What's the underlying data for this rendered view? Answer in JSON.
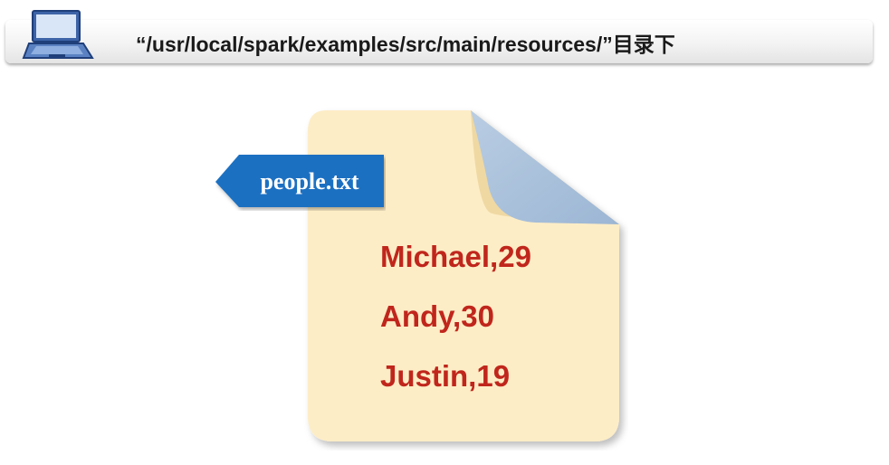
{
  "header": {
    "title": "“/usr/local/spark/examples/src/main/resources/”目录下",
    "icon": "laptop-icon"
  },
  "file": {
    "name": "people.txt",
    "lines": [
      "Michael,29",
      "Andy,30",
      "Justin,19"
    ],
    "icon": "document-icon"
  },
  "colors": {
    "file_body": "#fdedc6",
    "file_fold": "#a9c1dc",
    "tag": "#1a70c2",
    "text_accent": "#c0261c"
  }
}
